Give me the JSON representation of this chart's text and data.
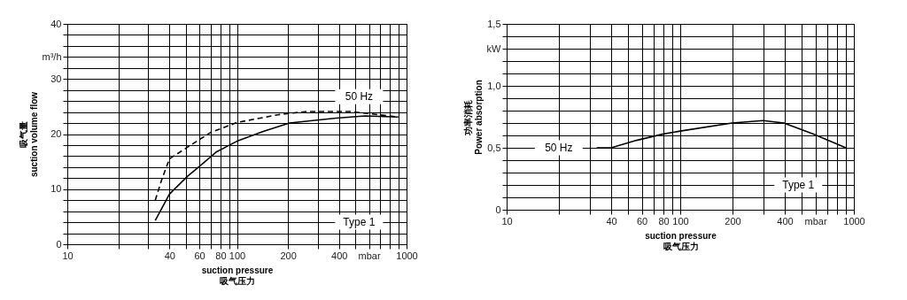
{
  "chart_data": [
    {
      "type": "line",
      "xlabel": "suction pressure\n吸气压力",
      "ylabel": "吸气量\nsuction volume flow",
      "log": "x",
      "grid": true,
      "marker": "none",
      "xlim": [
        10,
        1000
      ],
      "xticks": [
        10,
        {
          "value": 20,
          "label": null
        },
        {
          "value": 30,
          "label": null
        },
        40,
        {
          "value": 50,
          "label": null
        },
        60,
        {
          "value": 70,
          "label": null
        },
        80,
        {
          "value": 90,
          "label": null
        },
        100,
        200,
        {
          "value": 300,
          "label": null
        },
        400,
        {
          "value": 500,
          "label": null
        },
        {
          "value": 600,
          "label": "mbar"
        },
        {
          "value": 700,
          "label": null
        },
        {
          "value": 800,
          "label": null
        },
        {
          "value": 900,
          "label": null
        },
        1000
      ],
      "ylim": [
        0,
        40
      ],
      "yticks": [
        0,
        {
          "value": 2,
          "label": null
        },
        {
          "value": 4,
          "label": null
        },
        {
          "value": 6,
          "label": null
        },
        {
          "value": 8,
          "label": null
        },
        10,
        {
          "value": 12,
          "label": null
        },
        {
          "value": 14,
          "label": null
        },
        {
          "value": 16,
          "label": null
        },
        {
          "value": 18,
          "label": null
        },
        20,
        {
          "value": 22,
          "label": null
        },
        {
          "value": 24,
          "label": null
        },
        {
          "value": 26,
          "label": null
        },
        {
          "value": 28,
          "label": null
        },
        30,
        {
          "value": 32,
          "label": null
        },
        {
          "value": 34,
          "label": "m³/h"
        },
        {
          "value": 36,
          "label": null
        },
        {
          "value": 38,
          "label": null
        },
        40
      ],
      "series": [
        {
          "color": "#000000",
          "line_style": "solid",
          "x": [
            33,
            40,
            51,
            60,
            76,
            100,
            143,
            204,
            383,
            569,
            895
          ],
          "values": [
            4.3,
            9.1,
            12.3,
            14.1,
            16.8,
            18.7,
            20.5,
            22.0,
            22.9,
            23.3,
            23.1
          ]
        },
        {
          "color": "#000000",
          "line_style": "dashed",
          "x": [
            33,
            36,
            40,
            51,
            70,
            100,
            174,
            258,
            466,
            895
          ],
          "values": [
            8.0,
            11.7,
            15.5,
            17.6,
            20.3,
            22.1,
            23.5,
            24.1,
            24.1,
            23.1
          ]
        }
      ],
      "annotations": [
        "50 Hz",
        "Type 1"
      ]
    },
    {
      "type": "line",
      "xlabel": "suction pressure\n吸气压力",
      "ylabel": "功率消耗\nPower absorption",
      "log": "x",
      "grid": true,
      "marker": "none",
      "xlim": [
        10,
        1000
      ],
      "xticks": [
        10,
        {
          "value": 20,
          "label": null
        },
        {
          "value": 30,
          "label": null
        },
        40,
        {
          "value": 50,
          "label": null
        },
        60,
        {
          "value": 70,
          "label": null
        },
        80,
        {
          "value": 90,
          "label": null
        },
        100,
        200,
        {
          "value": 300,
          "label": null
        },
        400,
        {
          "value": 500,
          "label": null
        },
        {
          "value": 600,
          "label": "mbar"
        },
        {
          "value": 700,
          "label": null
        },
        {
          "value": 800,
          "label": null
        },
        {
          "value": 900,
          "label": null
        },
        1000
      ],
      "ylim": [
        0,
        1.5
      ],
      "yticks": [
        {
          "value": 0,
          "label": "0"
        },
        {
          "value": 0.1,
          "label": null
        },
        {
          "value": 0.2,
          "label": null
        },
        {
          "value": 0.3,
          "label": null
        },
        {
          "value": 0.4,
          "label": null
        },
        {
          "value": 0.5,
          "label": "0,5"
        },
        {
          "value": 0.6,
          "label": null
        },
        {
          "value": 0.7,
          "label": null
        },
        {
          "value": 0.8,
          "label": null
        },
        {
          "value": 0.9,
          "label": null
        },
        {
          "value": 1.0,
          "label": "1,0"
        },
        {
          "value": 1.1,
          "label": null
        },
        {
          "value": 1.2,
          "label": null
        },
        {
          "value": 1.3,
          "label": "kW"
        },
        {
          "value": 1.4,
          "label": null
        },
        {
          "value": 1.5,
          "label": "1,5"
        }
      ],
      "series": [
        {
          "color": "#000000",
          "line_style": "solid",
          "x": [
            33,
            40,
            56,
            79,
            100,
            199,
            300,
            395,
            585,
            899
          ],
          "values": [
            0.5,
            0.5,
            0.56,
            0.61,
            0.635,
            0.7,
            0.72,
            0.7,
            0.61,
            0.5
          ]
        }
      ],
      "annotations": [
        "50 Hz",
        "Type 1"
      ]
    }
  ]
}
